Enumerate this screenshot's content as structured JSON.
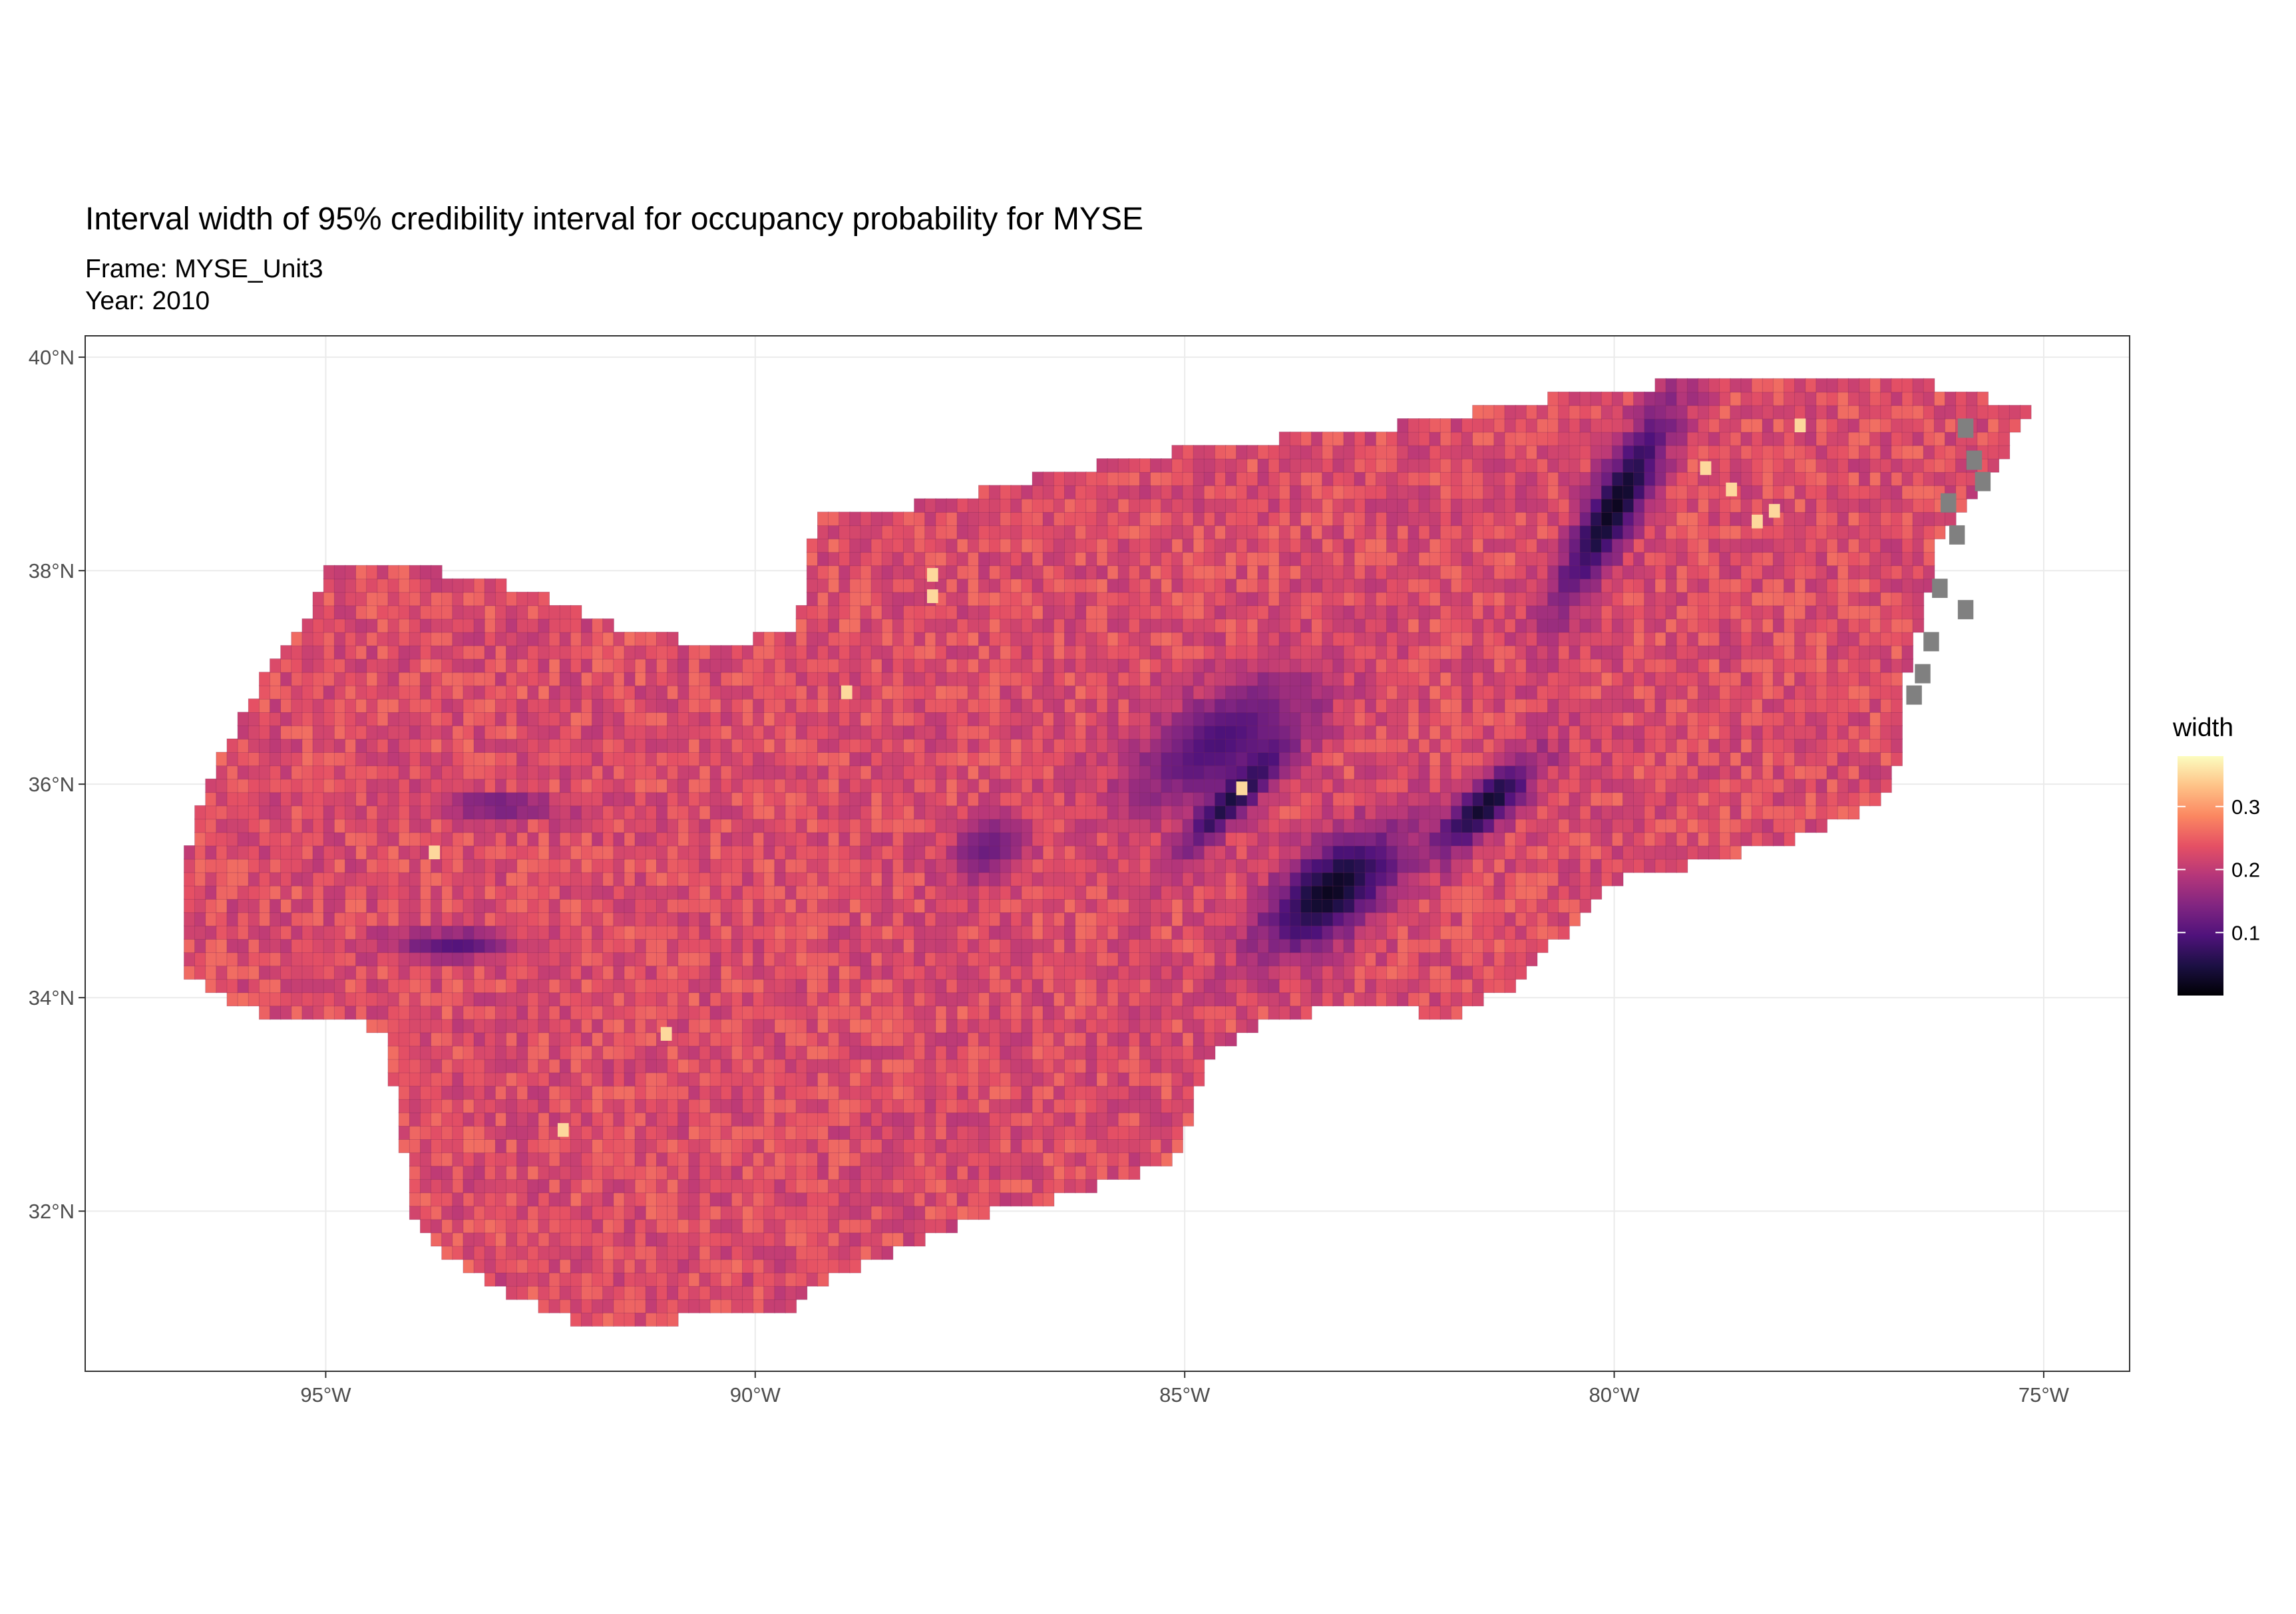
{
  "title": "Interval width of 95% credibility interval for occupancy probability for MYSE",
  "subtitle_frame": "Frame: MYSE_Unit3",
  "subtitle_year": "Year: 2010",
  "chart_data": {
    "type": "heatmap",
    "title": "Interval width of 95% credibility interval for occupancy probability for MYSE",
    "subtitle": [
      "Frame: MYSE_Unit3",
      "Year: 2010"
    ],
    "xlabel": "",
    "ylabel": "",
    "x_ticks": [
      {
        "value": -95,
        "label": "95°W"
      },
      {
        "value": -90,
        "label": "90°W"
      },
      {
        "value": -85,
        "label": "85°W"
      },
      {
        "value": -80,
        "label": "80°W"
      },
      {
        "value": -75,
        "label": "75°W"
      }
    ],
    "y_ticks": [
      {
        "value": 32,
        "label": "32°N"
      },
      {
        "value": 34,
        "label": "34°N"
      },
      {
        "value": 36,
        "label": "36°N"
      },
      {
        "value": 38,
        "label": "38°N"
      },
      {
        "value": 40,
        "label": "40°N"
      }
    ],
    "xlim": [
      -97.8,
      -74.0
    ],
    "ylim": [
      30.5,
      40.2
    ],
    "grid": true,
    "colormap": "magma",
    "na_color": "#808080",
    "legend": {
      "title": "width",
      "position": "right",
      "ticks": [
        {
          "value": 0.1,
          "label": "0.1"
        },
        {
          "value": 0.2,
          "label": "0.2"
        },
        {
          "value": 0.3,
          "label": "0.3"
        }
      ],
      "range": [
        0.0,
        0.38
      ]
    },
    "background_width": 0.23,
    "region_outline": [
      [
        -96.7,
        34.6
      ],
      [
        -96.6,
        35.4
      ],
      [
        -96.4,
        36.0
      ],
      [
        -96.0,
        36.6
      ],
      [
        -95.6,
        37.2
      ],
      [
        -95.2,
        37.6
      ],
      [
        -95.0,
        38.0
      ],
      [
        -93.7,
        38.0
      ],
      [
        -93.1,
        37.9
      ],
      [
        -92.6,
        37.8
      ],
      [
        -92.0,
        37.6
      ],
      [
        -91.3,
        37.4
      ],
      [
        -90.3,
        37.3
      ],
      [
        -89.5,
        37.5
      ],
      [
        -89.4,
        38.0
      ],
      [
        -89.3,
        38.5
      ],
      [
        -88.2,
        38.6
      ],
      [
        -87.1,
        38.8
      ],
      [
        -85.9,
        39.0
      ],
      [
        -84.5,
        39.2
      ],
      [
        -83.0,
        39.3
      ],
      [
        -81.6,
        39.5
      ],
      [
        -80.2,
        39.7
      ],
      [
        -78.5,
        39.8
      ],
      [
        -76.5,
        39.8
      ],
      [
        -75.2,
        39.5
      ],
      [
        -75.6,
        38.9
      ],
      [
        -76.2,
        38.3
      ],
      [
        -76.4,
        37.6
      ],
      [
        -76.6,
        37.0
      ],
      [
        -76.6,
        36.4
      ],
      [
        -76.9,
        35.8
      ],
      [
        -77.8,
        35.5
      ],
      [
        -79.3,
        35.2
      ],
      [
        -80.0,
        35.1
      ],
      [
        -80.6,
        34.6
      ],
      [
        -81.2,
        34.1
      ],
      [
        -81.9,
        33.8
      ],
      [
        -82.6,
        33.9
      ],
      [
        -83.3,
        33.9
      ],
      [
        -84.0,
        33.8
      ],
      [
        -84.7,
        33.5
      ],
      [
        -84.9,
        33.0
      ],
      [
        -85.1,
        32.5
      ],
      [
        -86.1,
        32.2
      ],
      [
        -87.2,
        32.0
      ],
      [
        -88.4,
        31.6
      ],
      [
        -89.1,
        31.4
      ],
      [
        -89.6,
        31.1
      ],
      [
        -90.4,
        31.1
      ],
      [
        -91.3,
        30.9
      ],
      [
        -91.9,
        30.9
      ],
      [
        -92.8,
        31.2
      ],
      [
        -93.6,
        31.6
      ],
      [
        -94.0,
        32.0
      ],
      [
        -94.1,
        32.6
      ],
      [
        -94.2,
        33.1
      ],
      [
        -94.3,
        33.6
      ],
      [
        -94.6,
        33.8
      ],
      [
        -95.3,
        33.8
      ],
      [
        -96.0,
        33.9
      ],
      [
        -96.6,
        34.2
      ]
    ],
    "low_zones": [
      {
        "lon": -83.3,
        "lat": 35.0,
        "rx": 1.0,
        "ry": 0.45,
        "angle": 30,
        "width": 0.02
      },
      {
        "lon": -81.5,
        "lat": 35.8,
        "rx": 0.8,
        "ry": 0.25,
        "angle": 35,
        "width": 0.03
      },
      {
        "lon": -84.4,
        "lat": 35.9,
        "rx": 0.9,
        "ry": 0.2,
        "angle": 40,
        "width": 0.03
      },
      {
        "lon": -80.0,
        "lat": 38.6,
        "rx": 1.2,
        "ry": 0.3,
        "angle": 55,
        "width": 0.02
      },
      {
        "lon": -84.6,
        "lat": 36.4,
        "rx": 1.2,
        "ry": 0.5,
        "angle": 25,
        "width": 0.09
      },
      {
        "lon": -93.5,
        "lat": 34.5,
        "rx": 0.8,
        "ry": 0.15,
        "angle": 0,
        "width": 0.1
      },
      {
        "lon": -93.0,
        "lat": 35.8,
        "rx": 0.8,
        "ry": 0.12,
        "angle": 0,
        "width": 0.11
      },
      {
        "lon": -87.3,
        "lat": 35.4,
        "rx": 0.5,
        "ry": 0.3,
        "angle": 20,
        "width": 0.12
      }
    ],
    "high_cells": [
      [
        -88.0,
        37.9
      ],
      [
        -88.0,
        37.7
      ],
      [
        -89.0,
        36.8
      ],
      [
        -78.4,
        38.4
      ],
      [
        -78.2,
        38.5
      ],
      [
        -79.0,
        38.9
      ],
      [
        -92.3,
        32.7
      ],
      [
        -91.1,
        33.6
      ],
      [
        -93.8,
        35.3
      ],
      [
        -84.4,
        35.9
      ],
      [
        -78.7,
        38.7
      ],
      [
        -77.9,
        39.3
      ]
    ],
    "na_cells": [
      [
        -76.0,
        39.3
      ],
      [
        -75.8,
        38.8
      ],
      [
        -76.1,
        38.3
      ],
      [
        -76.3,
        37.8
      ],
      [
        -76.4,
        37.3
      ],
      [
        -76.6,
        36.8
      ],
      [
        -76.2,
        38.6
      ],
      [
        -75.9,
        39.0
      ],
      [
        -76.5,
        37.0
      ],
      [
        -76.0,
        37.6
      ]
    ]
  }
}
